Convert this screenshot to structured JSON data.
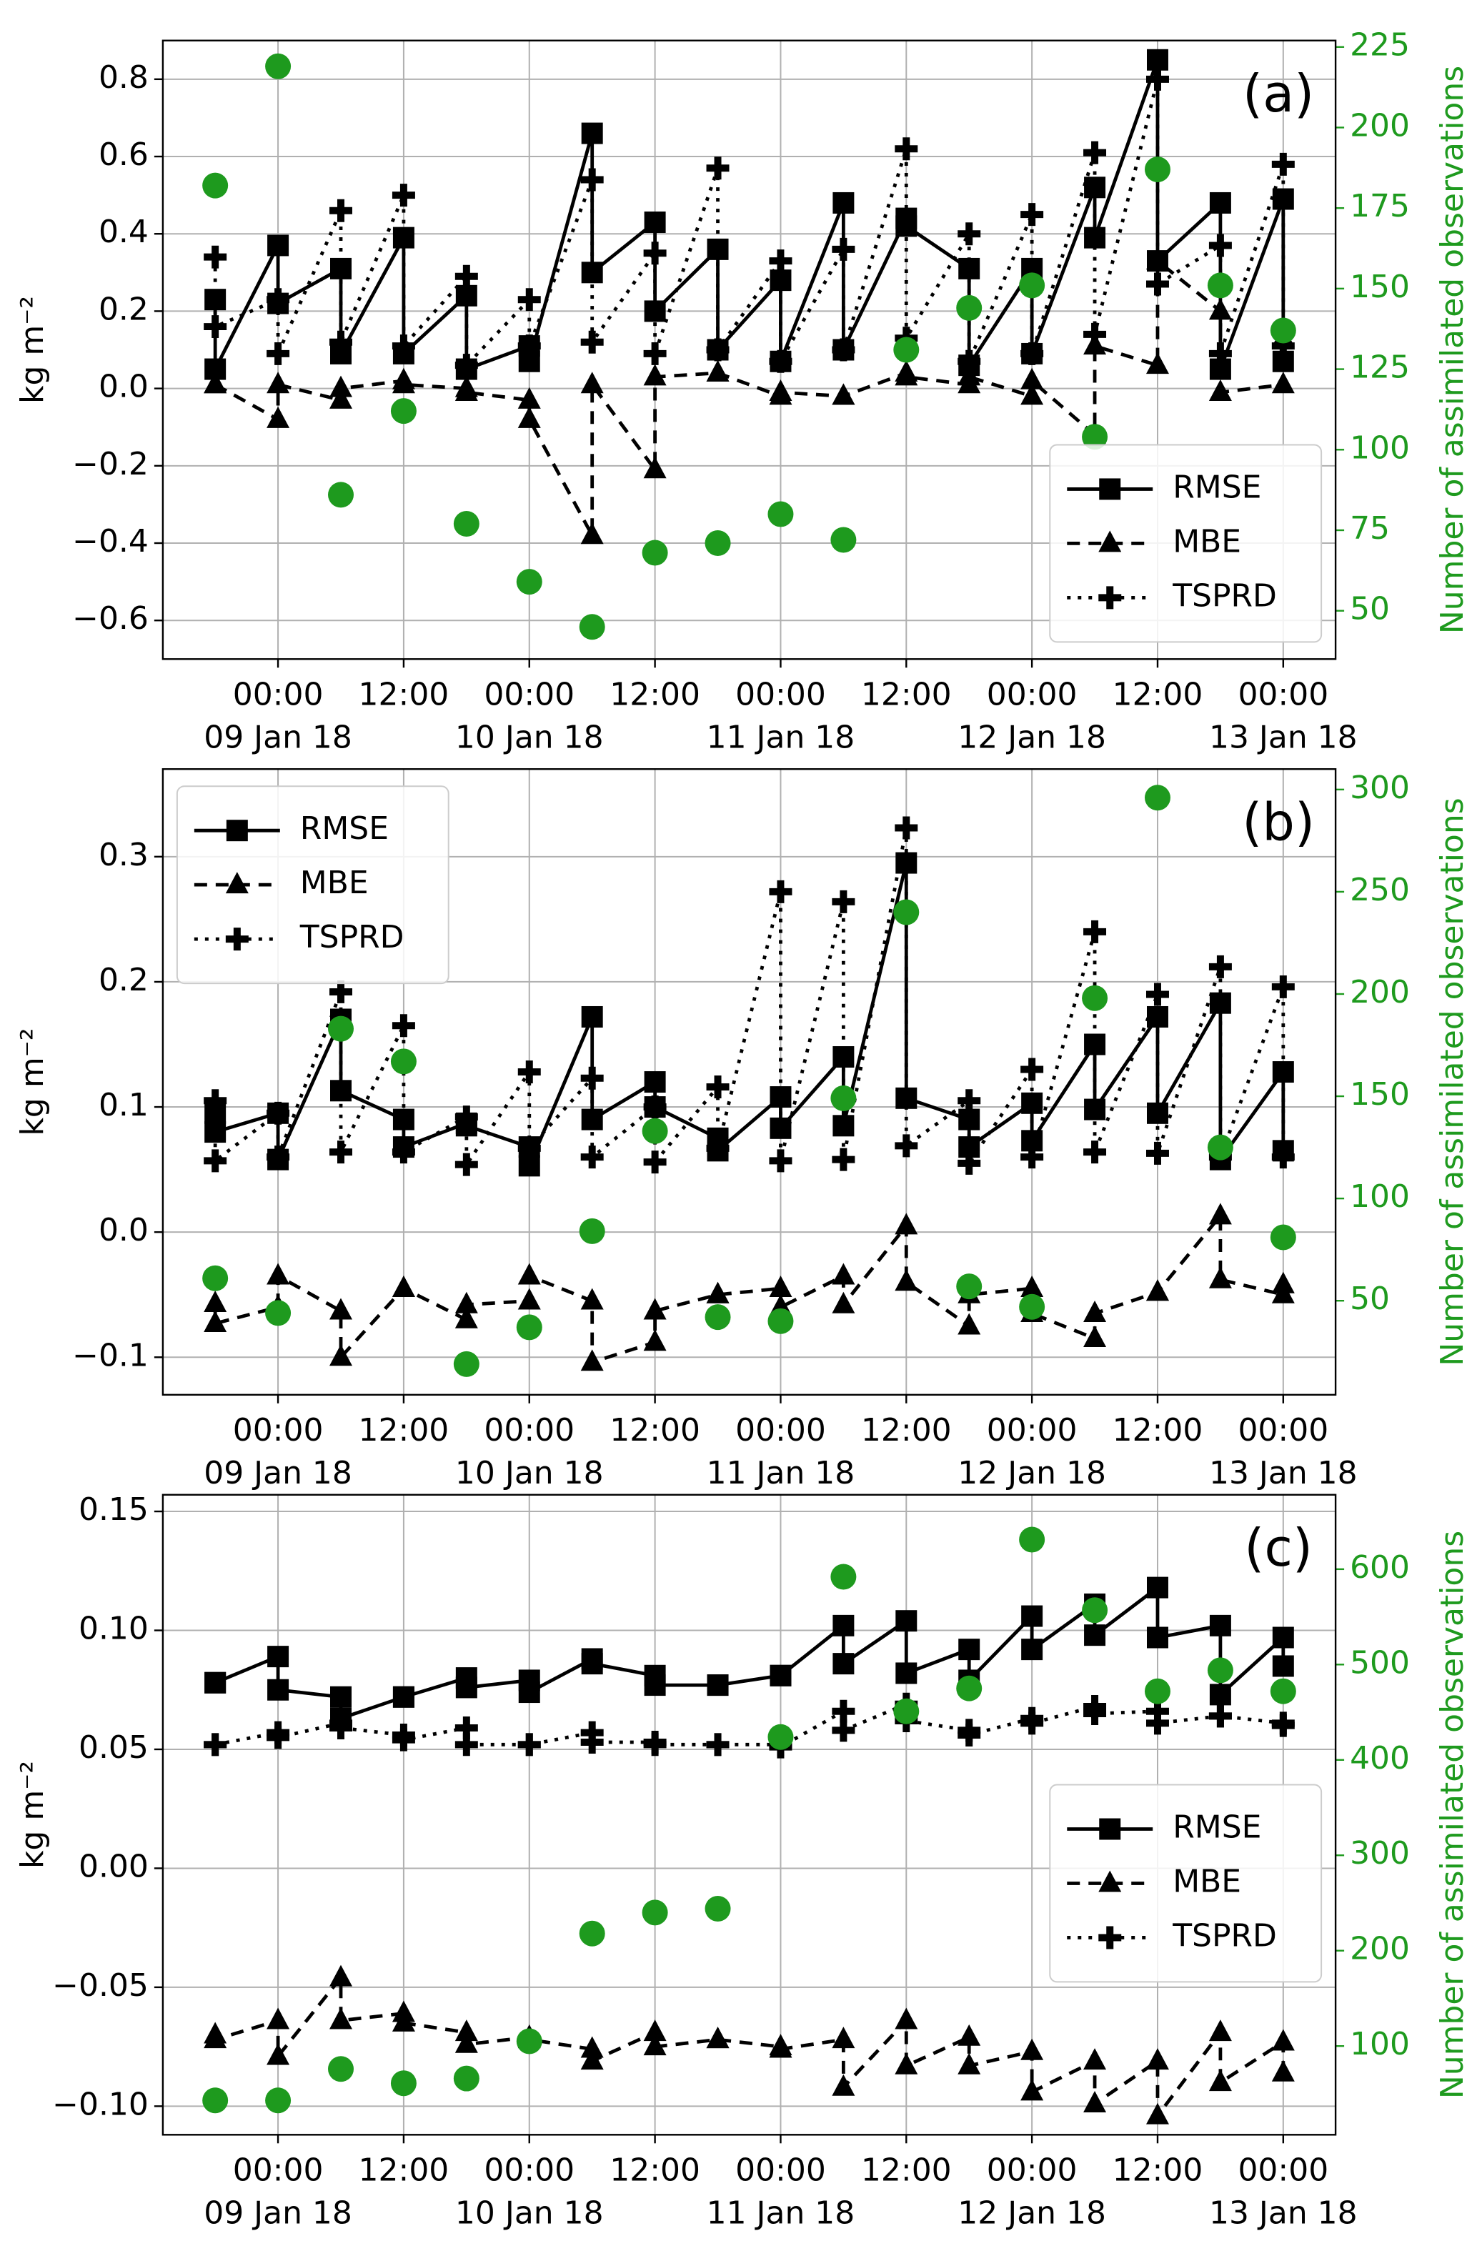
{
  "chart_data": [
    {
      "type": "line",
      "annotation": "(a)",
      "ylabel": "kg m⁻²",
      "y2label": "Number of assimilated observations",
      "grid": true,
      "legend": "lower right",
      "xlim": [
        -11,
        101
      ],
      "xticks": [
        {
          "value": 0,
          "label": "00:00",
          "date": "09 Jan 18"
        },
        {
          "value": 12,
          "label": "12:00"
        },
        {
          "value": 24,
          "label": "00:00",
          "date": "10 Jan 18"
        },
        {
          "value": 36,
          "label": "12:00"
        },
        {
          "value": 48,
          "label": "00:00",
          "date": "11 Jan 18"
        },
        {
          "value": 60,
          "label": "12:00"
        },
        {
          "value": 72,
          "label": "00:00",
          "date": "12 Jan 18"
        },
        {
          "value": 84,
          "label": "12:00"
        },
        {
          "value": 96,
          "label": "00:00",
          "date": "13 Jan 18"
        }
      ],
      "ylim": [
        -0.7,
        0.9
      ],
      "yticks": [
        {
          "value": -0.6,
          "label": "−0.6"
        },
        {
          "value": -0.4,
          "label": "−0.4"
        },
        {
          "value": -0.2,
          "label": "−0.2"
        },
        {
          "value": 0,
          "label": "0.0"
        },
        0.2,
        0.4,
        0.6,
        0.8
      ],
      "y2lim": [
        35,
        227
      ],
      "y2ticks": [
        50,
        75,
        100,
        125,
        150,
        175,
        200,
        225
      ],
      "x": [
        -6,
        -6,
        0,
        0,
        6,
        6,
        12,
        12,
        18,
        18,
        24,
        24,
        30,
        30,
        36,
        36,
        42,
        42,
        48,
        48,
        54,
        54,
        60,
        60,
        66,
        66,
        72,
        72,
        78,
        78,
        84,
        84,
        90,
        90,
        96,
        96
      ],
      "series": [
        {
          "name": "RMSE",
          "color": "#000000",
          "marker": "square",
          "linestyle": "solid",
          "values": [
            0.23,
            0.05,
            0.37,
            0.22,
            0.31,
            0.09,
            0.39,
            0.09,
            0.24,
            0.05,
            0.11,
            0.07,
            0.66,
            0.3,
            0.43,
            0.2,
            0.36,
            0.1,
            0.28,
            0.07,
            0.48,
            0.1,
            0.44,
            0.42,
            0.31,
            0.06,
            0.31,
            0.09,
            0.52,
            0.39,
            0.85,
            0.33,
            0.48,
            0.05,
            0.49,
            0.07
          ]
        },
        {
          "name": "MBE",
          "color": "#000000",
          "marker": "triangle",
          "linestyle": "dashed",
          "values": [
            0.01,
            0.01,
            -0.08,
            0.01,
            -0.03,
            0.0,
            0.02,
            0.01,
            0.0,
            -0.01,
            -0.03,
            -0.08,
            -0.38,
            0.01,
            -0.21,
            0.03,
            0.04,
            0.04,
            -0.02,
            -0.01,
            -0.02,
            -0.02,
            0.04,
            0.03,
            0.01,
            0.03,
            -0.02,
            0.02,
            -0.12,
            0.11,
            0.06,
            0.33,
            0.2,
            -0.01,
            0.01,
            0.13
          ]
        },
        {
          "name": "TSPRD",
          "color": "#000000",
          "marker": "plus",
          "linestyle": "dotted",
          "values": [
            0.34,
            0.16,
            0.23,
            0.09,
            0.46,
            0.12,
            0.5,
            0.11,
            0.29,
            0.06,
            0.23,
            0.11,
            0.54,
            0.12,
            0.35,
            0.09,
            0.57,
            0.1,
            0.33,
            0.07,
            0.36,
            0.1,
            0.62,
            0.13,
            0.4,
            0.07,
            0.45,
            0.09,
            0.61,
            0.14,
            0.8,
            0.27,
            0.37,
            0.09,
            0.58,
            0.11
          ]
        },
        {
          "color": "#1e9a1e",
          "marker": "circle",
          "axis": "y2",
          "x": [
            -6,
            0,
            6,
            12,
            18,
            24,
            30,
            36,
            42,
            48,
            54,
            60,
            66,
            72,
            78,
            84,
            90,
            96
          ],
          "values": [
            182,
            219,
            86,
            112,
            77,
            59,
            45,
            68,
            71,
            80,
            72,
            131,
            144,
            151,
            104,
            187,
            151,
            137
          ]
        }
      ]
    },
    {
      "type": "line",
      "annotation": "(b)",
      "ylabel": "kg m⁻²",
      "y2label": "Number of assimilated observations",
      "grid": true,
      "legend": "upper left",
      "xlim": [
        -11,
        101
      ],
      "xticks": [
        {
          "value": 0,
          "label": "00:00",
          "date": "09 Jan 18"
        },
        {
          "value": 12,
          "label": "12:00"
        },
        {
          "value": 24,
          "label": "00:00",
          "date": "10 Jan 18"
        },
        {
          "value": 36,
          "label": "12:00"
        },
        {
          "value": 48,
          "label": "00:00",
          "date": "11 Jan 18"
        },
        {
          "value": 60,
          "label": "12:00"
        },
        {
          "value": 72,
          "label": "00:00",
          "date": "12 Jan 18"
        },
        {
          "value": 84,
          "label": "12:00"
        },
        {
          "value": 96,
          "label": "00:00",
          "date": "13 Jan 18"
        }
      ],
      "ylim": [
        -0.13,
        0.37
      ],
      "yticks": [
        {
          "value": -0.1,
          "label": "−0.1"
        },
        {
          "value": 0,
          "label": "0.0"
        },
        0.1,
        0.2,
        0.3
      ],
      "y2lim": [
        4,
        310
      ],
      "y2ticks": [
        50,
        100,
        150,
        200,
        250,
        300
      ],
      "x": [
        -6,
        -6,
        0,
        0,
        6,
        6,
        12,
        12,
        18,
        18,
        24,
        24,
        30,
        30,
        36,
        36,
        42,
        42,
        48,
        48,
        54,
        54,
        60,
        60,
        66,
        66,
        72,
        72,
        78,
        78,
        84,
        84,
        90,
        90,
        96,
        96
      ],
      "series": [
        {
          "name": "RMSE",
          "color": "#000000",
          "marker": "square",
          "linestyle": "solid",
          "values": [
            0.095,
            0.08,
            0.095,
            0.058,
            0.17,
            0.113,
            0.09,
            0.068,
            0.087,
            0.085,
            0.068,
            0.053,
            0.172,
            0.09,
            0.12,
            0.1,
            0.075,
            0.065,
            0.108,
            0.083,
            0.14,
            0.085,
            0.295,
            0.107,
            0.09,
            0.068,
            0.103,
            0.073,
            0.15,
            0.098,
            0.172,
            0.095,
            0.183,
            0.058,
            0.128,
            0.065
          ]
        },
        {
          "name": "MBE",
          "color": "#000000",
          "marker": "triangle",
          "linestyle": "dashed",
          "values": [
            -0.057,
            -0.073,
            -0.06,
            -0.035,
            -0.063,
            -0.1,
            -0.045,
            -0.045,
            -0.07,
            -0.058,
            -0.055,
            -0.035,
            -0.055,
            -0.104,
            -0.088,
            -0.063,
            -0.05,
            -0.05,
            -0.045,
            -0.06,
            -0.035,
            -0.058,
            0.005,
            -0.04,
            -0.075,
            -0.05,
            -0.045,
            -0.065,
            -0.085,
            -0.065,
            -0.048,
            -0.048,
            0.013,
            -0.038,
            -0.05,
            -0.042
          ]
        },
        {
          "name": "TSPRD",
          "color": "#000000",
          "marker": "plus",
          "linestyle": "dotted",
          "values": [
            0.105,
            0.057,
            0.095,
            0.06,
            0.192,
            0.064,
            0.165,
            0.064,
            0.092,
            0.054,
            0.128,
            0.067,
            0.123,
            0.06,
            0.1,
            0.056,
            0.116,
            0.067,
            0.272,
            0.057,
            0.264,
            0.058,
            0.323,
            0.069,
            0.105,
            0.055,
            0.13,
            0.06,
            0.24,
            0.064,
            0.19,
            0.063,
            0.212,
            0.06,
            0.196,
            0.06
          ]
        },
        {
          "color": "#1e9a1e",
          "marker": "circle",
          "axis": "y2",
          "x": [
            -6,
            0,
            6,
            12,
            18,
            24,
            30,
            36,
            42,
            48,
            54,
            60,
            66,
            72,
            78,
            84,
            90,
            96
          ],
          "values": [
            61,
            44,
            183,
            167,
            19,
            37,
            84,
            133,
            42,
            40,
            149,
            240,
            57,
            47,
            198,
            296,
            125,
            81
          ]
        }
      ]
    },
    {
      "type": "line",
      "annotation": "(c)",
      "ylabel": "kg m⁻²",
      "y2label": "Number of assimilated observations",
      "grid": true,
      "legend": "center right",
      "xlim": [
        -11,
        101
      ],
      "xticks": [
        {
          "value": 0,
          "label": "00:00",
          "date": "09 Jan 18"
        },
        {
          "value": 12,
          "label": "12:00"
        },
        {
          "value": 24,
          "label": "00:00",
          "date": "10 Jan 18"
        },
        {
          "value": 36,
          "label": "12:00"
        },
        {
          "value": 48,
          "label": "00:00",
          "date": "11 Jan 18"
        },
        {
          "value": 60,
          "label": "12:00"
        },
        {
          "value": 72,
          "label": "00:00",
          "date": "12 Jan 18"
        },
        {
          "value": 84,
          "label": "12:00"
        },
        {
          "value": 96,
          "label": "00:00",
          "date": "13 Jan 18"
        }
      ],
      "ylim": [
        -0.112,
        0.157
      ],
      "yticks": [
        {
          "value": -0.1,
          "label": "−0.10"
        },
        {
          "value": -0.05,
          "label": "−0.05"
        },
        {
          "value": 0,
          "label": "0.00"
        },
        0.05,
        {
          "value": 0.1,
          "label": "0.10"
        },
        0.15
      ],
      "y2lim": [
        7,
        678
      ],
      "y2ticks": [
        100,
        200,
        300,
        400,
        500,
        600
      ],
      "x": [
        -6,
        -6,
        0,
        0,
        6,
        6,
        12,
        12,
        18,
        18,
        24,
        24,
        30,
        30,
        36,
        36,
        42,
        42,
        48,
        48,
        54,
        54,
        60,
        60,
        66,
        66,
        72,
        72,
        78,
        78,
        84,
        84,
        90,
        90,
        96,
        96
      ],
      "series": [
        {
          "name": "RMSE",
          "color": "#000000",
          "marker": "square",
          "linestyle": "solid",
          "values": [
            0.078,
            0.078,
            0.089,
            0.075,
            0.072,
            0.063,
            0.072,
            0.072,
            0.08,
            0.076,
            0.079,
            0.074,
            0.088,
            0.086,
            0.081,
            0.077,
            0.077,
            0.077,
            0.081,
            0.081,
            0.102,
            0.086,
            0.104,
            0.082,
            0.092,
            0.079,
            0.106,
            0.092,
            0.111,
            0.098,
            0.118,
            0.097,
            0.102,
            0.073,
            0.097,
            0.085
          ]
        },
        {
          "name": "MBE",
          "color": "#000000",
          "marker": "triangle",
          "linestyle": "dashed",
          "values": [
            -0.07,
            -0.072,
            -0.064,
            -0.079,
            -0.046,
            -0.064,
            -0.061,
            -0.065,
            -0.069,
            -0.074,
            -0.071,
            -0.072,
            -0.076,
            -0.081,
            -0.069,
            -0.075,
            -0.072,
            -0.072,
            -0.075,
            -0.076,
            -0.072,
            -0.092,
            -0.064,
            -0.083,
            -0.071,
            -0.083,
            -0.077,
            -0.094,
            -0.081,
            -0.099,
            -0.081,
            -0.104,
            -0.069,
            -0.09,
            -0.073,
            -0.086
          ]
        },
        {
          "name": "TSPRD",
          "color": "#000000",
          "marker": "plus",
          "linestyle": "dotted",
          "values": [
            0.052,
            0.052,
            0.057,
            0.055,
            0.061,
            0.059,
            0.056,
            0.054,
            0.059,
            0.052,
            0.052,
            0.052,
            0.057,
            0.053,
            0.053,
            0.052,
            0.052,
            0.052,
            0.052,
            0.051,
            0.066,
            0.058,
            0.069,
            0.062,
            0.058,
            0.056,
            0.063,
            0.061,
            0.068,
            0.065,
            0.066,
            0.061,
            0.064,
            0.064,
            0.061,
            0.06
          ]
        },
        {
          "color": "#1e9a1e",
          "marker": "circle",
          "axis": "y2",
          "x": [
            -6,
            0,
            6,
            12,
            18,
            24,
            30,
            36,
            42,
            48,
            54,
            60,
            66,
            72,
            78,
            84,
            90,
            96
          ],
          "values": [
            43,
            43,
            76,
            61,
            66,
            105,
            218,
            240,
            244,
            424,
            592,
            451,
            475,
            631,
            557,
            472,
            494,
            472
          ]
        }
      ]
    }
  ]
}
